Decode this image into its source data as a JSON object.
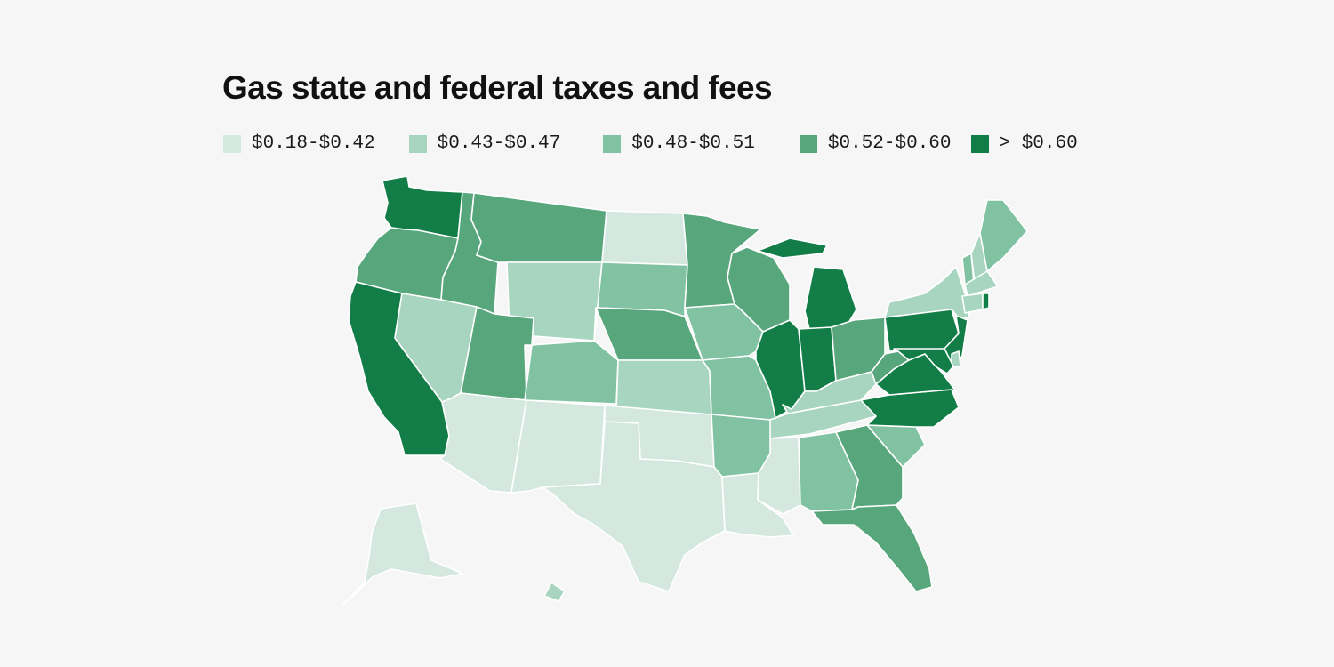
{
  "title": "Gas state and federal taxes and fees",
  "legend": [
    {
      "label": "$0.18-$0.42",
      "color": "#d4e8df"
    },
    {
      "label": "$0.43-$0.47",
      "color": "#a8d5bf"
    },
    {
      "label": "$0.48-$0.51",
      "color": "#80c2a2"
    },
    {
      "label": "$0.52-$0.60",
      "color": "#58a67b"
    },
    {
      "label": "> $0.60",
      "color": "#137d48"
    }
  ],
  "states": [
    {
      "abbr": "WA",
      "bin": 4
    },
    {
      "abbr": "OR",
      "bin": 3
    },
    {
      "abbr": "CA",
      "bin": 4
    },
    {
      "abbr": "ID",
      "bin": 3
    },
    {
      "abbr": "NV",
      "bin": 1
    },
    {
      "abbr": "MT",
      "bin": 3
    },
    {
      "abbr": "WY",
      "bin": 1
    },
    {
      "abbr": "UT",
      "bin": 3
    },
    {
      "abbr": "AZ",
      "bin": 0
    },
    {
      "abbr": "CO",
      "bin": 2
    },
    {
      "abbr": "NM",
      "bin": 0
    },
    {
      "abbr": "ND",
      "bin": 0
    },
    {
      "abbr": "SD",
      "bin": 2
    },
    {
      "abbr": "NE",
      "bin": 3
    },
    {
      "abbr": "KS",
      "bin": 1
    },
    {
      "abbr": "OK",
      "bin": 0
    },
    {
      "abbr": "TX",
      "bin": 0
    },
    {
      "abbr": "MN",
      "bin": 3
    },
    {
      "abbr": "IA",
      "bin": 2
    },
    {
      "abbr": "MO",
      "bin": 2
    },
    {
      "abbr": "AR",
      "bin": 2
    },
    {
      "abbr": "LA",
      "bin": 0
    },
    {
      "abbr": "WI",
      "bin": 3
    },
    {
      "abbr": "IL",
      "bin": 4
    },
    {
      "abbr": "MI",
      "bin": 4
    },
    {
      "abbr": "IN",
      "bin": 4
    },
    {
      "abbr": "OH",
      "bin": 3
    },
    {
      "abbr": "KY",
      "bin": 1
    },
    {
      "abbr": "TN",
      "bin": 1
    },
    {
      "abbr": "MS",
      "bin": 0
    },
    {
      "abbr": "AL",
      "bin": 2
    },
    {
      "abbr": "GA",
      "bin": 3
    },
    {
      "abbr": "FL",
      "bin": 3
    },
    {
      "abbr": "SC",
      "bin": 2
    },
    {
      "abbr": "NC",
      "bin": 4
    },
    {
      "abbr": "VA",
      "bin": 4
    },
    {
      "abbr": "WV",
      "bin": 3
    },
    {
      "abbr": "PA",
      "bin": 4
    },
    {
      "abbr": "NY",
      "bin": 1
    },
    {
      "abbr": "NJ",
      "bin": 4
    },
    {
      "abbr": "DE",
      "bin": 1
    },
    {
      "abbr": "MD",
      "bin": 4
    },
    {
      "abbr": "VT",
      "bin": 2
    },
    {
      "abbr": "NH",
      "bin": 1
    },
    {
      "abbr": "ME",
      "bin": 2
    },
    {
      "abbr": "MA",
      "bin": 1
    },
    {
      "abbr": "CT",
      "bin": 1
    },
    {
      "abbr": "RI",
      "bin": 4
    },
    {
      "abbr": "AK",
      "bin": 0
    },
    {
      "abbr": "HI",
      "bin": 1
    }
  ]
}
